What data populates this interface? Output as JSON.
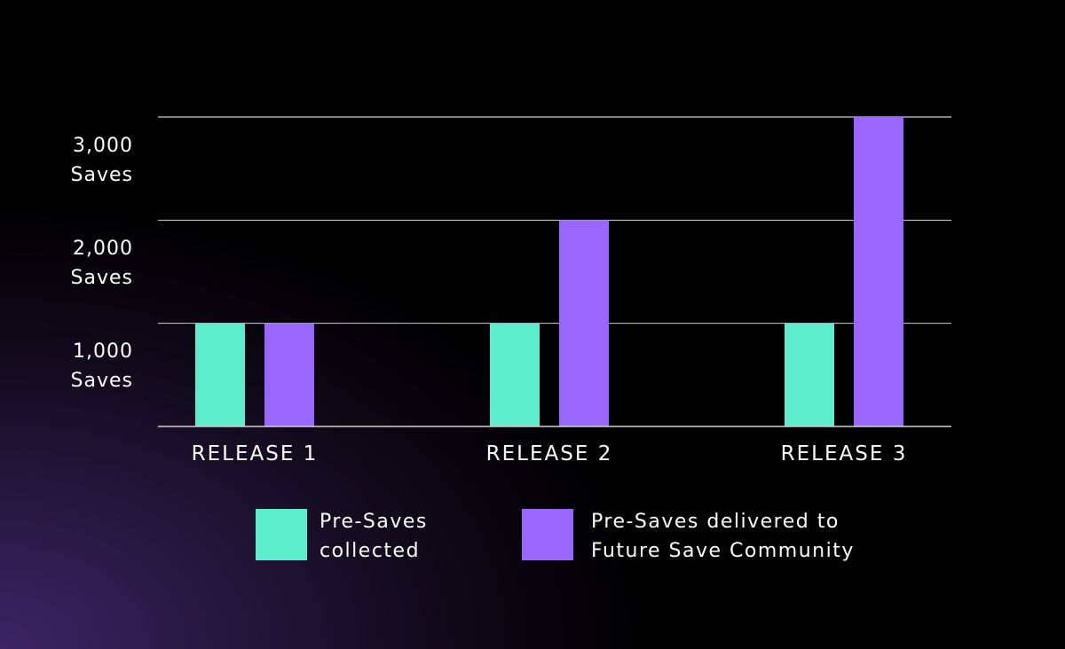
{
  "chart_data": {
    "type": "bar",
    "categories": [
      "RELEASE 1",
      "RELEASE 2",
      "RELEASE 3"
    ],
    "series": [
      {
        "name": "Pre-Saves collected",
        "values": [
          1000,
          1000,
          1000
        ],
        "color": "#5beccb"
      },
      {
        "name": "Pre-Saves delivered to Future Save Community",
        "values": [
          1000,
          2000,
          3000
        ],
        "color": "#9966ff"
      }
    ],
    "ylim": [
      0,
      3000
    ],
    "yticks": [
      {
        "value": 1000,
        "line1": "1,000",
        "line2": "Saves"
      },
      {
        "value": 2000,
        "line1": "2,000",
        "line2": "Saves"
      },
      {
        "value": 3000,
        "line1": "3,000",
        "line2": "Saves"
      }
    ],
    "grid": true,
    "legend_position": "bottom",
    "legend": [
      {
        "line1": "Pre-Saves",
        "line2": "collected"
      },
      {
        "line1": "Pre-Saves delivered to",
        "line2": "Future Save Community"
      }
    ]
  }
}
